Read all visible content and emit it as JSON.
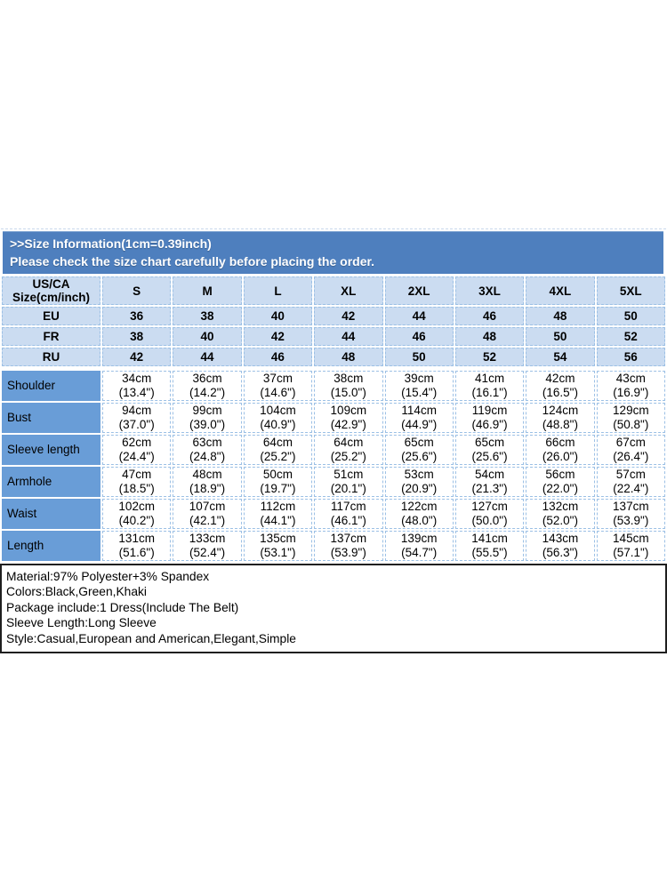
{
  "banner": {
    "line1": ">>Size Information(1cm=0.39inch)",
    "line2": "Please check the size chart carefully before placing the order."
  },
  "size_table": {
    "corner": {
      "line1": "US/CA",
      "line2": "Size(cm/inch)"
    },
    "size_columns": [
      "S",
      "M",
      "L",
      "XL",
      "2XL",
      "3XL",
      "4XL",
      "5XL"
    ],
    "region_rows": [
      {
        "label": "EU",
        "values": [
          "36",
          "38",
          "40",
          "42",
          "44",
          "46",
          "48",
          "50"
        ]
      },
      {
        "label": "FR",
        "values": [
          "38",
          "40",
          "42",
          "44",
          "46",
          "48",
          "50",
          "52"
        ]
      },
      {
        "label": "RU",
        "values": [
          "42",
          "44",
          "46",
          "48",
          "50",
          "52",
          "54",
          "56"
        ]
      }
    ],
    "measurement_rows": [
      {
        "label": "Shoulder",
        "cm": [
          "34cm",
          "36cm",
          "37cm",
          "38cm",
          "39cm",
          "41cm",
          "42cm",
          "43cm"
        ],
        "inch": [
          "(13.4\")",
          "(14.2\")",
          "(14.6\")",
          "(15.0\")",
          "(15.4\")",
          "(16.1\")",
          "(16.5\")",
          "(16.9\")"
        ]
      },
      {
        "label": "Bust",
        "cm": [
          "94cm",
          "99cm",
          "104cm",
          "109cm",
          "114cm",
          "119cm",
          "124cm",
          "129cm"
        ],
        "inch": [
          "(37.0\")",
          "(39.0\")",
          "(40.9\")",
          "(42.9\")",
          "(44.9\")",
          "(46.9\")",
          "(48.8\")",
          "(50.8\")"
        ]
      },
      {
        "label": "Sleeve length",
        "cm": [
          "62cm",
          "63cm",
          "64cm",
          "64cm",
          "65cm",
          "65cm",
          "66cm",
          "67cm"
        ],
        "inch": [
          "(24.4\")",
          "(24.8\")",
          "(25.2\")",
          "(25.2\")",
          "(25.6\")",
          "(25.6\")",
          "(26.0\")",
          "(26.4\")"
        ]
      },
      {
        "label": "Armhole",
        "cm": [
          "47cm",
          "48cm",
          "50cm",
          "51cm",
          "53cm",
          "54cm",
          "56cm",
          "57cm"
        ],
        "inch": [
          "(18.5\")",
          "(18.9\")",
          "(19.7\")",
          "(20.1\")",
          "(20.9\")",
          "(21.3\")",
          "(22.0\")",
          "(22.4\")"
        ]
      },
      {
        "label": "Waist",
        "cm": [
          "102cm",
          "107cm",
          "112cm",
          "117cm",
          "122cm",
          "127cm",
          "132cm",
          "137cm"
        ],
        "inch": [
          "(40.2\")",
          "(42.1\")",
          "(44.1\")",
          "(46.1\")",
          "(48.0\")",
          "(50.0\")",
          "(52.0\")",
          "(53.9\")"
        ]
      },
      {
        "label": "Length",
        "cm": [
          "131cm",
          "133cm",
          "135cm",
          "137cm",
          "139cm",
          "141cm",
          "143cm",
          "145cm"
        ],
        "inch": [
          "(51.6\")",
          "(52.4\")",
          "(53.1\")",
          "(53.9\")",
          "(54.7\")",
          "(55.5\")",
          "(56.3\")",
          "(57.1\")"
        ]
      }
    ]
  },
  "product_info": {
    "lines": [
      "Material:97% Polyester+3% Spandex",
      "Colors:Black,Green,Khaki",
      "Package include:1 Dress(Include The Belt)",
      "Sleeve Length:Long Sleeve",
      "Style:Casual,European and American,Elegant,Simple"
    ]
  },
  "colors": {
    "banner_bg": "#4e7fbe",
    "header_cell_bg": "#cbdcf1",
    "label_cell_bg": "#699dd7",
    "grid_dash": "#9cc0e5",
    "info_border": "#1f1f1f"
  }
}
